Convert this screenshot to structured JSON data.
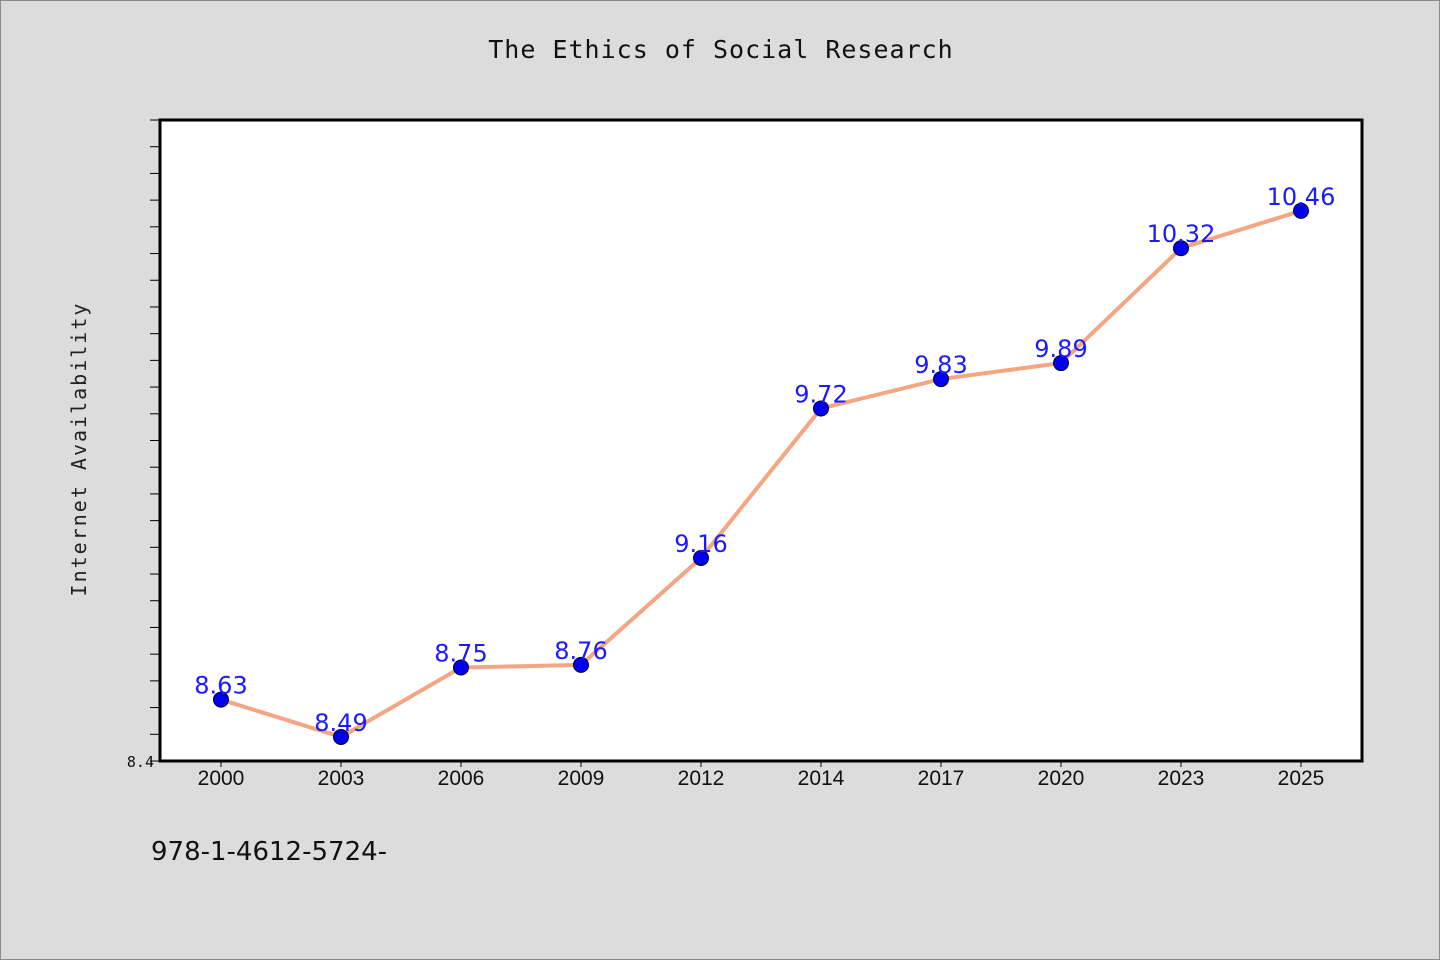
{
  "chart_data": {
    "type": "line",
    "title": "The Ethics of Social Research",
    "xlabel": "",
    "ylabel": "Internet Availability",
    "categories": [
      "2000",
      "2003",
      "2006",
      "2009",
      "2012",
      "2014",
      "2017",
      "2020",
      "2023",
      "2025"
    ],
    "series": [
      {
        "values": [
          8.63,
          8.49,
          8.75,
          8.76,
          9.16,
          9.72,
          9.83,
          9.89,
          10.32,
          10.46
        ],
        "labels": [
          "8.63",
          "8.49",
          "8.75",
          "8.76",
          "9.16",
          "9.72",
          "9.83",
          "9.89",
          "10.32",
          "10.46"
        ]
      }
    ],
    "ylim": [
      8.4,
      10.8
    ],
    "yticks_labeled": [
      "8.4"
    ],
    "grid": false,
    "legend": "none",
    "colors": {
      "line": "#f4a582",
      "marker": "#0000ee",
      "label": "#1a1aff",
      "plot_bg": "#ffffff",
      "page_bg": "#dcdcdc"
    }
  },
  "footer": {
    "text": "978-1-4612-5724-"
  }
}
